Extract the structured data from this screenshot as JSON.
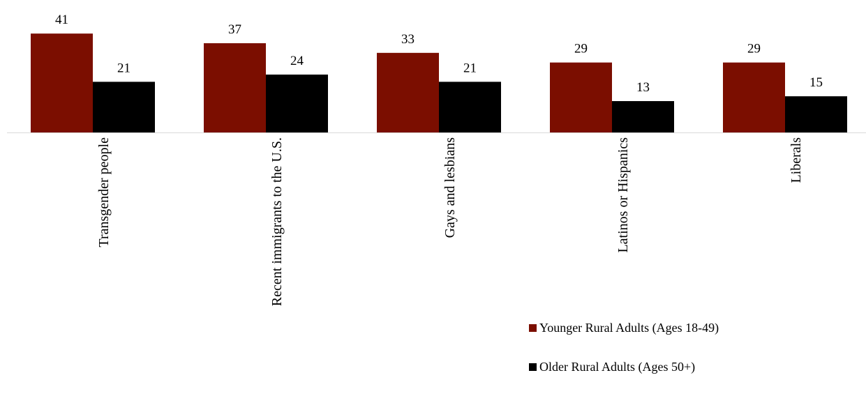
{
  "chart_data": {
    "type": "bar",
    "categories": [
      "Transgender people",
      "Recent immigrants to the U.S.",
      "Gays and lesbians",
      "Latinos or Hispanics",
      "Liberals"
    ],
    "series": [
      {
        "name": "Younger Rural Adults (Ages 18-49)",
        "color": "#7b0e00",
        "values": [
          41,
          37,
          33,
          29,
          29
        ]
      },
      {
        "name": "Older Rural Adults (Ages 50+)",
        "color": "#000000",
        "values": [
          21,
          24,
          21,
          13,
          15
        ]
      }
    ],
    "title": "",
    "xlabel": "",
    "ylabel": "",
    "ylim": [
      0,
      41
    ],
    "grid": false,
    "legend_position": "bottom-right",
    "data_labels": true
  }
}
